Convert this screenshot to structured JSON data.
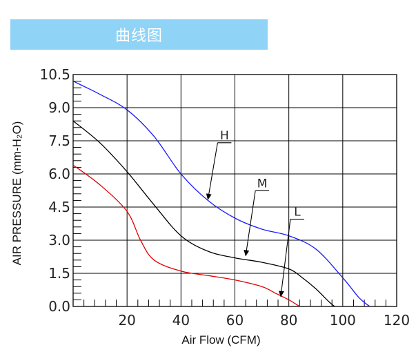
{
  "header": {
    "title": "曲线图"
  },
  "chart_data": {
    "type": "line",
    "xlabel": "Air Flow (CFM)",
    "ylabel": "AIR PRESSURE (mm-H₂O)",
    "xlim": [
      0,
      120
    ],
    "ylim": [
      0,
      10.5
    ],
    "x_ticks": [
      20,
      40,
      60,
      80,
      100,
      120
    ],
    "x_tick_labels": [
      "20",
      "40",
      "60",
      "80",
      "100",
      "120"
    ],
    "y_ticks": [
      0,
      1.5,
      3.0,
      4.5,
      6.0,
      7.5,
      9.0,
      10.5
    ],
    "y_tick_labels": [
      "0.0",
      "1.5",
      "3.0",
      "4.5",
      "6.0",
      "7.5",
      "9.0",
      "10.5"
    ],
    "grid": true,
    "series": [
      {
        "name": "H",
        "color": "#1a1aff",
        "x": [
          0,
          10,
          20,
          30,
          40,
          50,
          60,
          70,
          80,
          90,
          100,
          106,
          110
        ],
        "y": [
          10.2,
          9.6,
          8.9,
          7.7,
          6.0,
          4.8,
          4.0,
          3.5,
          3.2,
          2.6,
          1.3,
          0.4,
          0.0
        ]
      },
      {
        "name": "M",
        "color": "#000000",
        "x": [
          0,
          10,
          20,
          30,
          40,
          50,
          60,
          70,
          80,
          85,
          90,
          95,
          97
        ],
        "y": [
          8.4,
          7.4,
          6.1,
          4.6,
          3.2,
          2.5,
          2.2,
          2.0,
          1.7,
          1.3,
          0.8,
          0.2,
          0.0
        ]
      },
      {
        "name": "L",
        "color": "#e00000",
        "x": [
          0,
          10,
          20,
          25,
          30,
          40,
          50,
          60,
          70,
          75,
          80,
          84
        ],
        "y": [
          6.4,
          5.5,
          4.3,
          3.0,
          2.1,
          1.6,
          1.4,
          1.2,
          0.9,
          0.6,
          0.3,
          0.0
        ]
      }
    ]
  }
}
